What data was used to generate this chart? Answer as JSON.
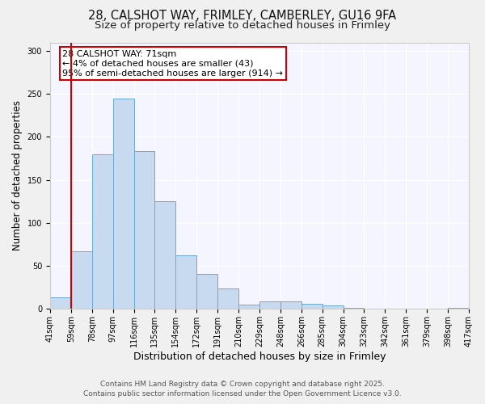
{
  "title_line1": "28, CALSHOT WAY, FRIMLEY, CAMBERLEY, GU16 9FA",
  "title_line2": "Size of property relative to detached houses in Frimley",
  "xlabel": "Distribution of detached houses by size in Frimley",
  "ylabel": "Number of detached properties",
  "bar_values": [
    13,
    67,
    180,
    245,
    183,
    125,
    62,
    40,
    23,
    5,
    8,
    8,
    6,
    4,
    1,
    0,
    0,
    0,
    0,
    1
  ],
  "bar_labels": [
    "41sqm",
    "59sqm",
    "78sqm",
    "97sqm",
    "116sqm",
    "135sqm",
    "154sqm",
    "172sqm",
    "191sqm",
    "210sqm",
    "229sqm",
    "248sqm",
    "266sqm",
    "285sqm",
    "304sqm",
    "323sqm",
    "342sqm",
    "361sqm",
    "379sqm",
    "398sqm",
    "417sqm"
  ],
  "bar_color": "#c8daf0",
  "bar_edge_color": "#6aaad4",
  "vline_color": "#cc0000",
  "annotation_text": "28 CALSHOT WAY: 71sqm\n← 4% of detached houses are smaller (43)\n95% of semi-detached houses are larger (914) →",
  "annotation_box_color": "#ffffff",
  "annotation_box_edge": "#cc0000",
  "ylim": [
    0,
    310
  ],
  "yticks": [
    0,
    50,
    100,
    150,
    200,
    250,
    300
  ],
  "bg_color": "#f0f0f0",
  "plot_bg_color": "#f5f5ff",
  "grid_color": "#ffffff",
  "footer_text": "Contains HM Land Registry data © Crown copyright and database right 2025.\nContains public sector information licensed under the Open Government Licence v3.0.",
  "title_fontsize": 10.5,
  "subtitle_fontsize": 9.5,
  "xlabel_fontsize": 9,
  "ylabel_fontsize": 8.5,
  "tick_fontsize": 7,
  "annotation_fontsize": 8,
  "footer_fontsize": 6.5
}
